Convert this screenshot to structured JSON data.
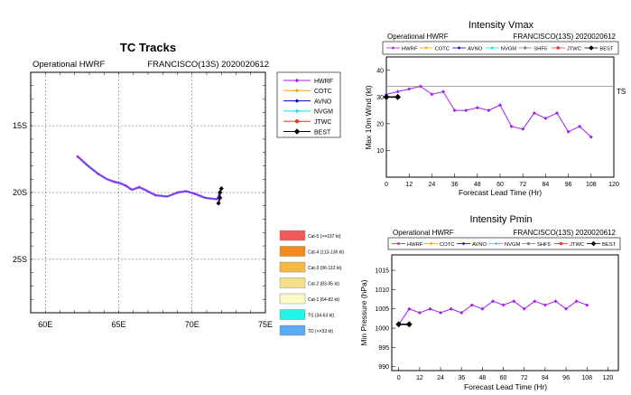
{
  "colors": {
    "hwrf": "#a020f0",
    "cotc": "#ffa500",
    "avno": "#0000cd",
    "nvgm": "#00e5ee",
    "shf5": "#808080",
    "jtwc": "#ff3030",
    "best": "#000000"
  },
  "chart_data": [
    {
      "type": "line",
      "name": "tracks",
      "title": "TC Tracks",
      "subtitle_left": "Operational HWRF",
      "subtitle_right": "FRANCISCO(13S) 2020020612",
      "xlim": [
        59,
        75
      ],
      "ylim": [
        -29,
        -11
      ],
      "x_ticks": [
        60,
        65,
        70,
        75
      ],
      "x_tick_labels": [
        "60E",
        "65E",
        "70E",
        "75E"
      ],
      "y_ticks": [
        -15,
        -20,
        -25
      ],
      "y_tick_labels": [
        "15S",
        "20S",
        "25S"
      ],
      "legend": [
        "HWRF",
        "COTC",
        "AVNO",
        "NVGM",
        "JTWC",
        "BEST"
      ],
      "categories_legend": [
        {
          "label": "Cat-5 (>=137 kt)",
          "color": "#f05a5a"
        },
        {
          "label": "Cat-4 (113-136 kt)",
          "color": "#f08c1e"
        },
        {
          "label": "Cat-3 (96-112 kt)",
          "color": "#f5b946"
        },
        {
          "label": "Cat-2 (83-95 kt)",
          "color": "#f7e08c"
        },
        {
          "label": "Cat-1 (64-82 kt)",
          "color": "#fcf8c8"
        },
        {
          "label": "TS (34-63 kt)",
          "color": "#1ef5e6"
        },
        {
          "label": "TD (<=33 kt)",
          "color": "#5aaaf5"
        }
      ],
      "series": [
        {
          "name": "HWRF",
          "lon": [
            71.9,
            71.8,
            71.7,
            70.9,
            70.2,
            69.6,
            69.0,
            68.3,
            67.5,
            66.8,
            66.4,
            65.9,
            65.5,
            65.1,
            64.7,
            64.2,
            63.6,
            62.9,
            62.2
          ],
          "lat": [
            -20.0,
            -20.3,
            -20.5,
            -20.4,
            -20.1,
            -19.9,
            -20.0,
            -20.3,
            -20.2,
            -19.8,
            -19.6,
            -19.8,
            -19.5,
            -19.3,
            -19.2,
            -19.0,
            -18.6,
            -18.0,
            -17.3
          ]
        },
        {
          "name": "BEST",
          "lon": [
            71.8,
            71.9,
            71.9,
            72.0
          ],
          "lat": [
            -20.8,
            -20.4,
            -20.0,
            -19.7
          ]
        }
      ]
    },
    {
      "type": "line",
      "name": "vmax",
      "title": "Intensity Vmax",
      "subtitle_left": "Operational HWRF",
      "subtitle_right": "FRANCISCO(13S) 2020020612",
      "xlabel": "Forecast Lead Time (Hr)",
      "ylabel": "Max 10m Wind (kt)",
      "xlim": [
        0,
        120
      ],
      "ylim": [
        0,
        45
      ],
      "x_ticks": [
        0,
        12,
        24,
        36,
        48,
        60,
        72,
        84,
        96,
        108,
        120
      ],
      "y_ticks": [
        10,
        20,
        30,
        40
      ],
      "reference_line": {
        "value": 34,
        "label": "TS"
      },
      "legend": [
        "HWRF",
        "COTC",
        "AVNO",
        "NVGM",
        "SHF5",
        "JTWC",
        "BEST"
      ],
      "series": [
        {
          "name": "HWRF",
          "x": [
            0,
            6,
            12,
            18,
            24,
            30,
            36,
            42,
            48,
            54,
            60,
            66,
            72,
            78,
            84,
            90,
            96,
            102,
            108
          ],
          "y": [
            31,
            32,
            33,
            34,
            31,
            32,
            25,
            25,
            26,
            25,
            27,
            19,
            18,
            24,
            22,
            24,
            17,
            19,
            15
          ]
        },
        {
          "name": "BEST",
          "x": [
            0,
            6
          ],
          "y": [
            30,
            30
          ]
        }
      ]
    },
    {
      "type": "line",
      "name": "pmin",
      "title": "Intensity Pmin",
      "subtitle_left": "Operational HWRF",
      "subtitle_right": "FRANCISCO(13S) 2020020612",
      "xlabel": "Forecast Lead Time (Hr)",
      "ylabel": "Min Pressure (hPa)",
      "xlim": [
        -4,
        126
      ],
      "ylim": [
        989,
        1019
      ],
      "x_ticks": [
        0,
        12,
        24,
        36,
        48,
        60,
        72,
        84,
        96,
        108,
        120
      ],
      "y_ticks": [
        990,
        995,
        1000,
        1005,
        1010,
        1015
      ],
      "legend": [
        "HWRF",
        "COTC",
        "AVNO",
        "NVGM",
        "SHF5",
        "JTWC",
        "BEST"
      ],
      "series": [
        {
          "name": "HWRF",
          "x": [
            0,
            6,
            12,
            18,
            24,
            30,
            36,
            42,
            48,
            54,
            60,
            66,
            72,
            78,
            84,
            90,
            96,
            102,
            108
          ],
          "y": [
            1001,
            1005,
            1004,
            1005,
            1004,
            1005,
            1004,
            1006,
            1005,
            1007,
            1006,
            1007,
            1005,
            1007,
            1006,
            1007,
            1005,
            1007,
            1006
          ]
        },
        {
          "name": "BEST",
          "x": [
            0,
            6
          ],
          "y": [
            1001,
            1001
          ]
        }
      ]
    }
  ]
}
